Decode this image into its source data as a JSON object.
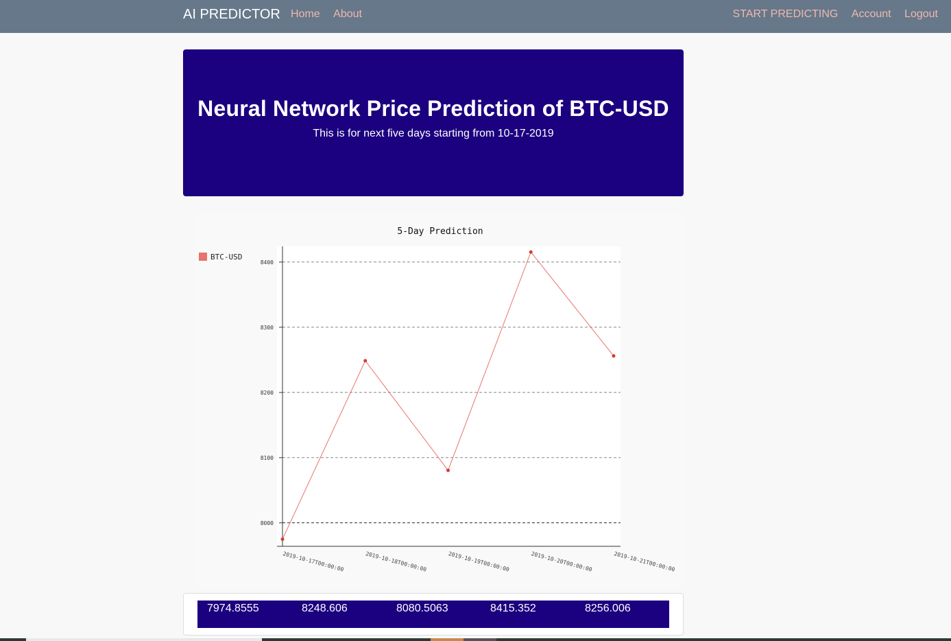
{
  "navbar": {
    "brand": "AI PREDICTOR",
    "left_links": [
      "Home",
      "About"
    ],
    "right_links": [
      "START PREDICTING",
      "Account",
      "Logout"
    ]
  },
  "hero": {
    "title": "Neural Network Price Prediction of BTC-USD",
    "subtitle": "This is for next five days starting from 10-17-2019"
  },
  "chart_data": {
    "type": "line",
    "title": "5-Day Prediction",
    "x": [
      "2019-10-17T00:00:00",
      "2019-10-18T00:00:00",
      "2019-10-19T00:00:00",
      "2019-10-20T00:00:00",
      "2019-10-21T00:00:00"
    ],
    "series": [
      {
        "name": "BTC-USD",
        "values": [
          7974.8555,
          8248.606,
          8080.5063,
          8415.352,
          8256.006
        ],
        "color": "#e8736c"
      }
    ],
    "yticks": [
      8000,
      8100,
      8200,
      8300,
      8400
    ],
    "ylim": [
      7964,
      8424
    ],
    "grid": "horizontal-dashed",
    "legend": "top-left"
  },
  "table": {
    "values": [
      "7974.8555",
      "8248.606",
      "8080.5063",
      "8415.352",
      "8256.006"
    ]
  },
  "colors": {
    "navbar": "#667889",
    "link": "#f0b7b0",
    "hero_bg": "#1b007f",
    "series": "#e8736c"
  }
}
